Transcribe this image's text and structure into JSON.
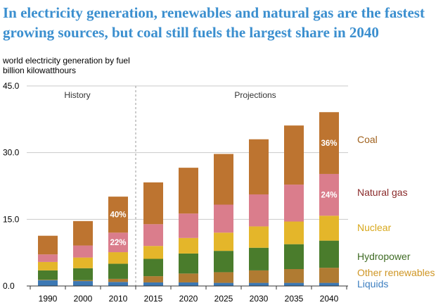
{
  "headline": {
    "line1": "In electricity generation, renewables and natural gas are the fastest",
    "line2": "growing sources, but coal still fuels the largest share in 2040"
  },
  "subtitle": {
    "line1": "world electricity generation by fuel",
    "line2": "billion kilowatthours"
  },
  "chart_data": {
    "type": "bar",
    "stacked": true,
    "title": "world electricity generation by fuel",
    "ylabel": "billion kilowatthours",
    "xlabel": "",
    "ylim": [
      0,
      45
    ],
    "yticks": [
      0,
      15,
      30,
      45
    ],
    "ytick_labels": [
      "0.0",
      "15.0",
      "30.0",
      "45.0"
    ],
    "categories": [
      "1990",
      "2000",
      "2010",
      "2015",
      "2020",
      "2025",
      "2030",
      "2035",
      "2040"
    ],
    "sections": [
      {
        "label": "History",
        "categories": [
          "1990",
          "2000",
          "2010"
        ]
      },
      {
        "label": "Projections",
        "categories": [
          "2015",
          "2020",
          "2025",
          "2030",
          "2035",
          "2040"
        ]
      }
    ],
    "series": [
      {
        "name": "Liquids",
        "color": "#3c78b4",
        "values": [
          1.3,
          1.1,
          0.9,
          0.8,
          0.8,
          0.7,
          0.7,
          0.7,
          0.7
        ]
      },
      {
        "name": "Other renewables",
        "color": "#b07b32",
        "values": [
          0.1,
          0.2,
          0.7,
          1.4,
          2.0,
          2.4,
          2.8,
          3.1,
          3.4
        ]
      },
      {
        "name": "Hydropower",
        "color": "#4a7c2c",
        "values": [
          2.1,
          2.7,
          3.4,
          3.9,
          4.5,
          4.8,
          5.1,
          5.6,
          6.1
        ]
      },
      {
        "name": "Nuclear",
        "color": "#e4b62a",
        "values": [
          1.9,
          2.4,
          2.6,
          2.9,
          3.5,
          4.1,
          4.8,
          5.1,
          5.6
        ]
      },
      {
        "name": "Natural gas",
        "color": "#da7d8c",
        "values": [
          1.7,
          2.7,
          4.4,
          4.9,
          5.5,
          6.3,
          7.2,
          8.3,
          9.4
        ]
      },
      {
        "name": "Coal",
        "color": "#bd7430",
        "values": [
          4.2,
          5.5,
          8.1,
          9.4,
          10.3,
          11.4,
          12.4,
          13.3,
          13.9
        ]
      }
    ],
    "legend": [
      {
        "name": "Coal",
        "color": "#a0621e"
      },
      {
        "name": "Natural gas",
        "color": "#8a2a2a"
      },
      {
        "name": "Nuclear",
        "color": "#d8a81c"
      },
      {
        "name": "Hydropower",
        "color": "#3f6b24"
      },
      {
        "name": "Other renewables",
        "color": "#cf9624"
      },
      {
        "name": "Liquids",
        "color": "#3c7ec0"
      }
    ],
    "annotations": [
      {
        "category": "2010",
        "series": "Coal",
        "text": "40%"
      },
      {
        "category": "2010",
        "series": "Natural gas",
        "text": "22%"
      },
      {
        "category": "2040",
        "series": "Coal",
        "text": "36%"
      },
      {
        "category": "2040",
        "series": "Natural gas",
        "text": "24%"
      }
    ]
  }
}
